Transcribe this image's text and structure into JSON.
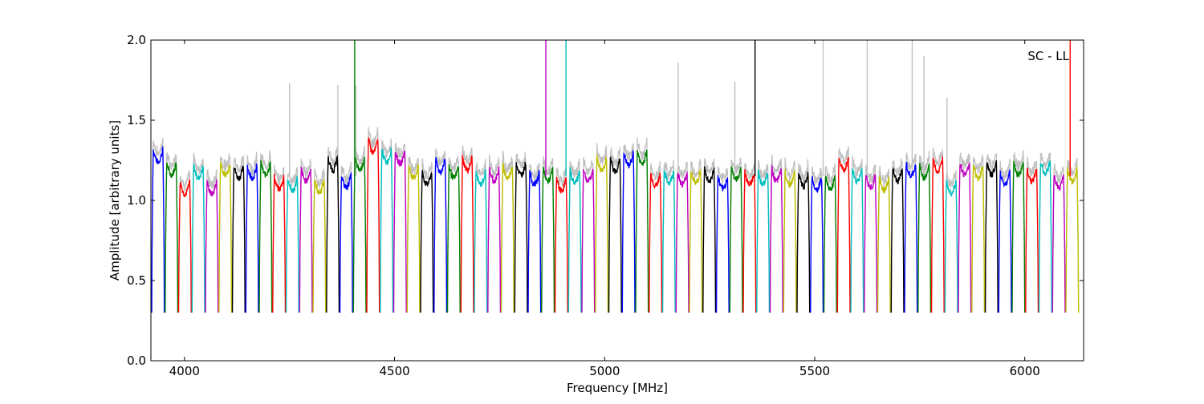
{
  "chart_data": {
    "type": "line",
    "title": "",
    "annotation": "SC - LL",
    "xlabel": "Frequency [MHz]",
    "ylabel": "Amplitude [arbitrary units]",
    "xlim": [
      3920,
      6140
    ],
    "ylim": [
      0.0,
      2.0
    ],
    "xticks": [
      4000,
      4500,
      5000,
      5500,
      6000
    ],
    "yticks": [
      0.0,
      0.5,
      1.0,
      1.5,
      2.0
    ],
    "xtick_labels": [
      "4000",
      "4500",
      "5000",
      "5500",
      "6000"
    ],
    "ytick_labels": [
      "0.0",
      "0.5",
      "1.0",
      "1.5",
      "2.0"
    ],
    "grid": false,
    "legend": "none",
    "channel_width_mhz": 32,
    "channel_start_mhz": 3922,
    "channel_count": 69,
    "color_cycle": [
      "#0000ff",
      "#008000",
      "#ff0000",
      "#00bfbf",
      "#bf00bf",
      "#bfbf00",
      "#000000"
    ],
    "background_series": {
      "color": "#c0c0c0",
      "description": "un-edited amplitude"
    },
    "channel_levels": [
      1.32,
      1.24,
      1.12,
      1.22,
      1.12,
      1.24,
      1.22,
      1.22,
      1.24,
      1.15,
      1.14,
      1.2,
      1.13,
      1.27,
      1.16,
      1.27,
      1.38,
      1.32,
      1.31,
      1.22,
      1.18,
      1.26,
      1.22,
      1.27,
      1.18,
      1.2,
      1.22,
      1.24,
      1.18,
      1.2,
      1.14,
      1.19,
      1.2,
      1.27,
      1.26,
      1.3,
      1.31,
      1.17,
      1.19,
      1.18,
      1.19,
      1.2,
      1.15,
      1.21,
      1.18,
      1.18,
      1.2,
      1.18,
      1.17,
      1.15,
      1.15,
      1.27,
      1.2,
      1.16,
      1.14,
      1.2,
      1.23,
      1.22,
      1.26,
      1.13,
      1.24,
      1.22,
      1.24,
      1.18,
      1.24,
      1.2,
      1.25,
      1.16,
      1.2
    ],
    "spikes": [
      {
        "x": 4405,
        "y": 2.0,
        "color": "#008000"
      },
      {
        "x": 4860,
        "y": 2.0,
        "color": "#bf00bf"
      },
      {
        "x": 4908,
        "y": 2.0,
        "color": "#00bfbf"
      },
      {
        "x": 5358,
        "y": 2.0,
        "color": "#000000"
      },
      {
        "x": 6108,
        "y": 2.0,
        "color": "#ff0000"
      },
      {
        "x": 5520,
        "y": 2.0,
        "color": "#c0c0c0"
      },
      {
        "x": 5625,
        "y": 2.0,
        "color": "#c0c0c0"
      },
      {
        "x": 5732,
        "y": 2.0,
        "color": "#c0c0c0"
      },
      {
        "x": 5175,
        "y": 1.86,
        "color": "#c0c0c0"
      },
      {
        "x": 5310,
        "y": 1.74,
        "color": "#c0c0c0"
      },
      {
        "x": 4250,
        "y": 1.73,
        "color": "#c0c0c0"
      },
      {
        "x": 4365,
        "y": 1.72,
        "color": "#c0c0c0"
      },
      {
        "x": 4408,
        "y": 1.72,
        "color": "#c0c0c0"
      },
      {
        "x": 5760,
        "y": 1.9,
        "color": "#c0c0c0"
      },
      {
        "x": 5815,
        "y": 1.64,
        "color": "#c0c0c0"
      }
    ]
  }
}
